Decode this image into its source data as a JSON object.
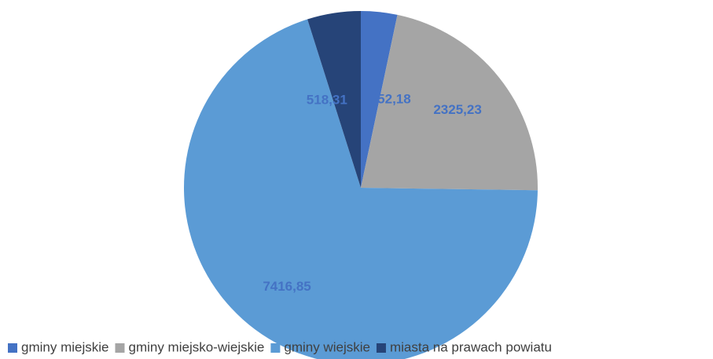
{
  "chart_data": {
    "type": "pie",
    "categories": [
      "gminy miejskie",
      "gminy miejsko-wiejskie",
      "gminy wiejskie",
      "miasta na prawach powiatu"
    ],
    "values": [
      352.18,
      2325.23,
      7416.85,
      518.31
    ],
    "value_labels": [
      "352,18",
      "2325,23",
      "7416,85",
      "518,31"
    ],
    "colors": [
      "#4472c4",
      "#a5a5a5",
      "#5b9bd5",
      "#264478"
    ],
    "legend": "bottom"
  }
}
